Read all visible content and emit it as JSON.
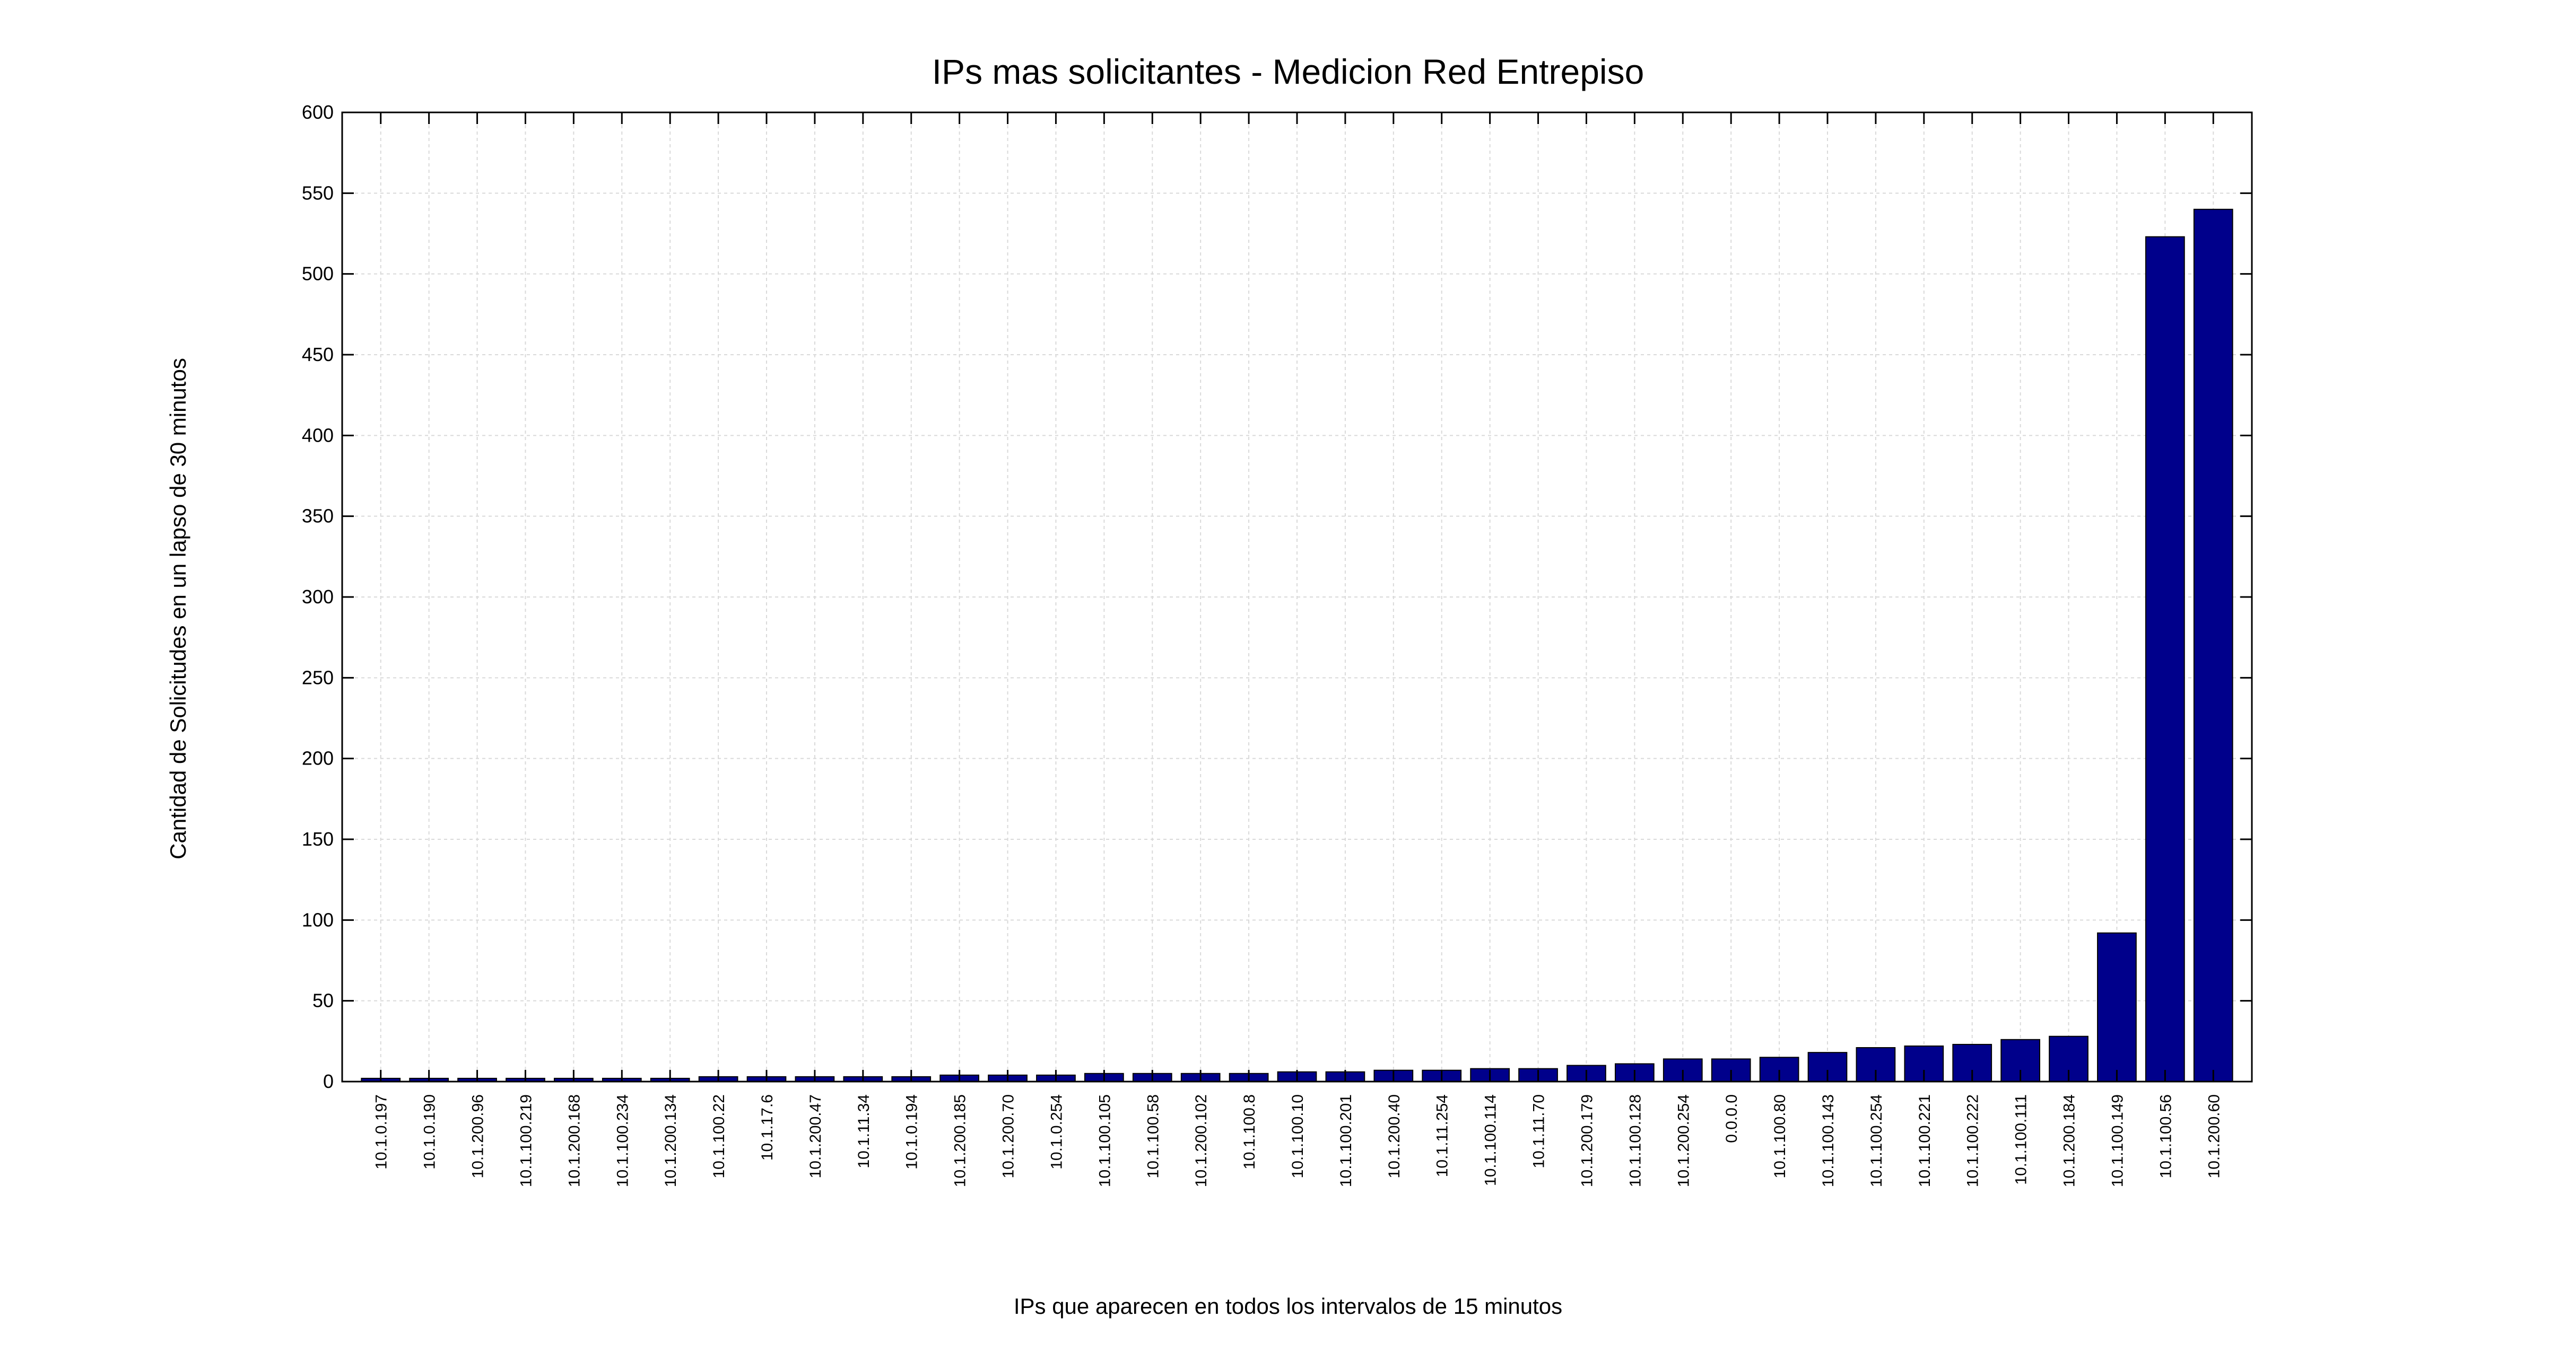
{
  "chart_data": {
    "type": "bar",
    "title": "IPs mas solicitantes - Medicion Red Entrepiso",
    "xlabel": "IPs que aparecen en todos los intervalos de 15 minutos",
    "ylabel": "Cantidad de Solicitudes en un lapso de 30 minutos",
    "ylim": [
      0,
      600
    ],
    "yticks": [
      0,
      50,
      100,
      150,
      200,
      250,
      300,
      350,
      400,
      450,
      500,
      550,
      600
    ],
    "grid": true,
    "bar_color": "#00008b",
    "categories": [
      "10.1.0.197",
      "10.1.0.190",
      "10.1.200.96",
      "10.1.100.219",
      "10.1.200.168",
      "10.1.100.234",
      "10.1.200.134",
      "10.1.100.22",
      "10.1.17.6",
      "10.1.200.47",
      "10.1.11.34",
      "10.1.0.194",
      "10.1.200.185",
      "10.1.200.70",
      "10.1.0.254",
      "10.1.100.105",
      "10.1.100.58",
      "10.1.200.102",
      "10.1.100.8",
      "10.1.100.10",
      "10.1.100.201",
      "10.1.200.40",
      "10.1.11.254",
      "10.1.100.114",
      "10.1.11.70",
      "10.1.200.179",
      "10.1.100.128",
      "10.1.200.254",
      "0.0.0.0",
      "10.1.100.80",
      "10.1.100.143",
      "10.1.100.254",
      "10.1.100.221",
      "10.1.100.222",
      "10.1.100.111",
      "10.1.200.184",
      "10.1.100.149",
      "10.1.100.56",
      "10.1.200.60"
    ],
    "values": [
      2,
      2,
      2,
      2,
      2,
      2,
      2,
      3,
      3,
      3,
      3,
      3,
      4,
      4,
      4,
      5,
      5,
      5,
      5,
      6,
      6,
      7,
      7,
      8,
      8,
      10,
      11,
      14,
      14,
      15,
      18,
      21,
      22,
      23,
      26,
      28,
      92,
      523,
      540
    ]
  }
}
